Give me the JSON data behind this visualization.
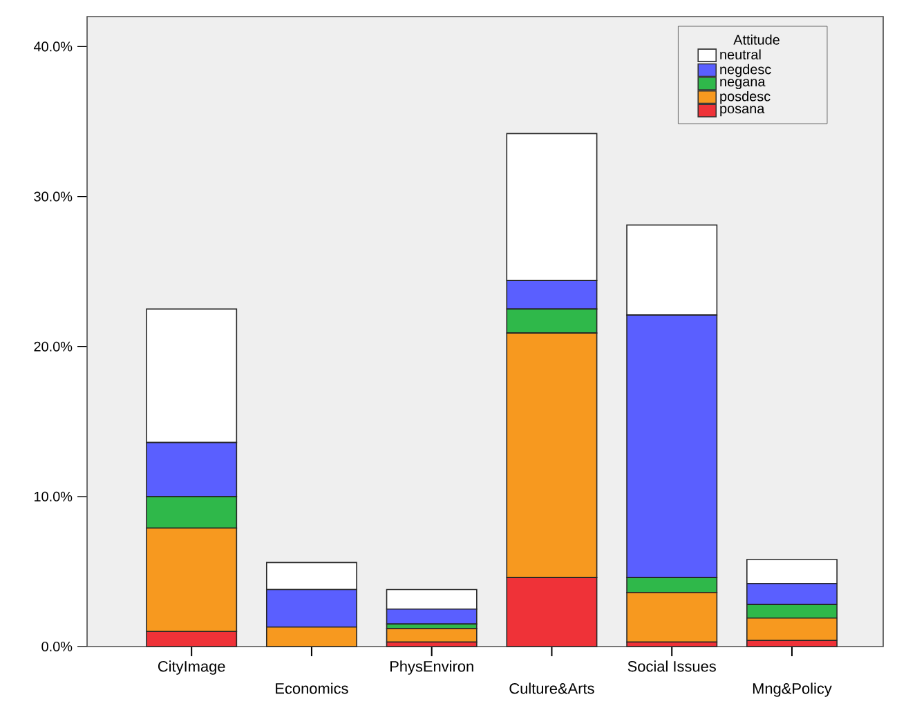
{
  "chart_data": {
    "type": "bar",
    "stacked": true,
    "legend_title": "Attitude",
    "legend": "top right",
    "categories": [
      "CityImage",
      "Economics",
      "PhysEnviron",
      "Culture&Arts",
      "Social Issues",
      "Mng&Policy"
    ],
    "series": [
      {
        "name": "posana",
        "color": "#ef3238",
        "values": [
          1.0,
          0,
          0.3,
          4.6,
          0.3,
          0.4
        ]
      },
      {
        "name": "posdesc",
        "color": "#f7991f",
        "values": [
          6.9,
          1.3,
          0.9,
          16.3,
          3.3,
          1.5
        ]
      },
      {
        "name": "negana",
        "color": "#2fb84a",
        "values": [
          2.1,
          0,
          0.3,
          1.6,
          1.0,
          0.9
        ]
      },
      {
        "name": "negdesc",
        "color": "#5a5fff",
        "values": [
          3.6,
          2.5,
          1.0,
          1.9,
          17.5,
          1.4
        ]
      },
      {
        "name": "neutral",
        "color": "#ffffff",
        "values": [
          8.9,
          1.8,
          1.3,
          9.8,
          6.0,
          1.6
        ]
      }
    ],
    "ylim": [
      0,
      42
    ],
    "yticks": [
      {
        "value": 0,
        "label": "0.0%"
      },
      {
        "value": 10,
        "label": "10.0%"
      },
      {
        "value": 20,
        "label": "20.0%"
      },
      {
        "value": 30,
        "label": "30.0%"
      },
      {
        "value": 40,
        "label": "40.0%"
      }
    ]
  }
}
